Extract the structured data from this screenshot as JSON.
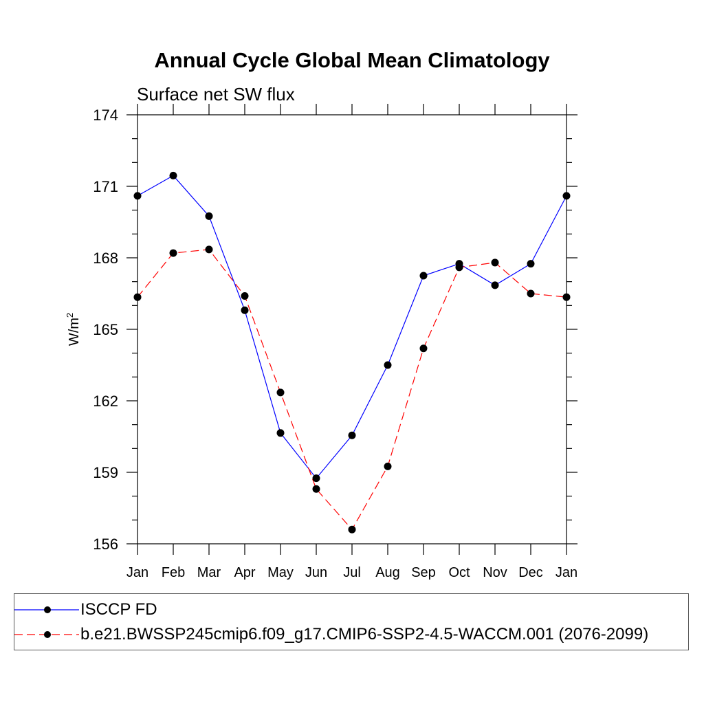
{
  "chart_data": {
    "type": "line",
    "title": "Annual Cycle Global Mean Climatology",
    "subtitle": "Surface net SW flux",
    "ylabel": "W/m",
    "ylabel_superscript": "2",
    "xlabel": "",
    "categories": [
      "Jan",
      "Feb",
      "Mar",
      "Apr",
      "May",
      "Jun",
      "Jul",
      "Aug",
      "Sep",
      "Oct",
      "Nov",
      "Dec",
      "Jan"
    ],
    "ylim": [
      156,
      174
    ],
    "yticks": [
      156,
      159,
      162,
      165,
      168,
      171,
      174
    ],
    "series": [
      {
        "name": "ISCCP FD",
        "color": "#0000ff",
        "dash": "solid",
        "values": [
          170.6,
          171.45,
          169.75,
          165.8,
          160.65,
          158.75,
          160.55,
          163.5,
          167.25,
          167.75,
          166.85,
          167.75,
          170.6
        ]
      },
      {
        "name": "b.e21.BWSSP245cmip6.f09_g17.CMIP6-SSP2-4.5-WACCM.001 (2076-2099)",
        "color": "#ff0000",
        "dash": "dashed",
        "values": [
          166.35,
          168.2,
          168.35,
          166.4,
          162.35,
          158.3,
          156.6,
          159.25,
          164.2,
          167.6,
          167.8,
          166.5,
          166.35
        ]
      }
    ],
    "legend_position": "bottom"
  }
}
